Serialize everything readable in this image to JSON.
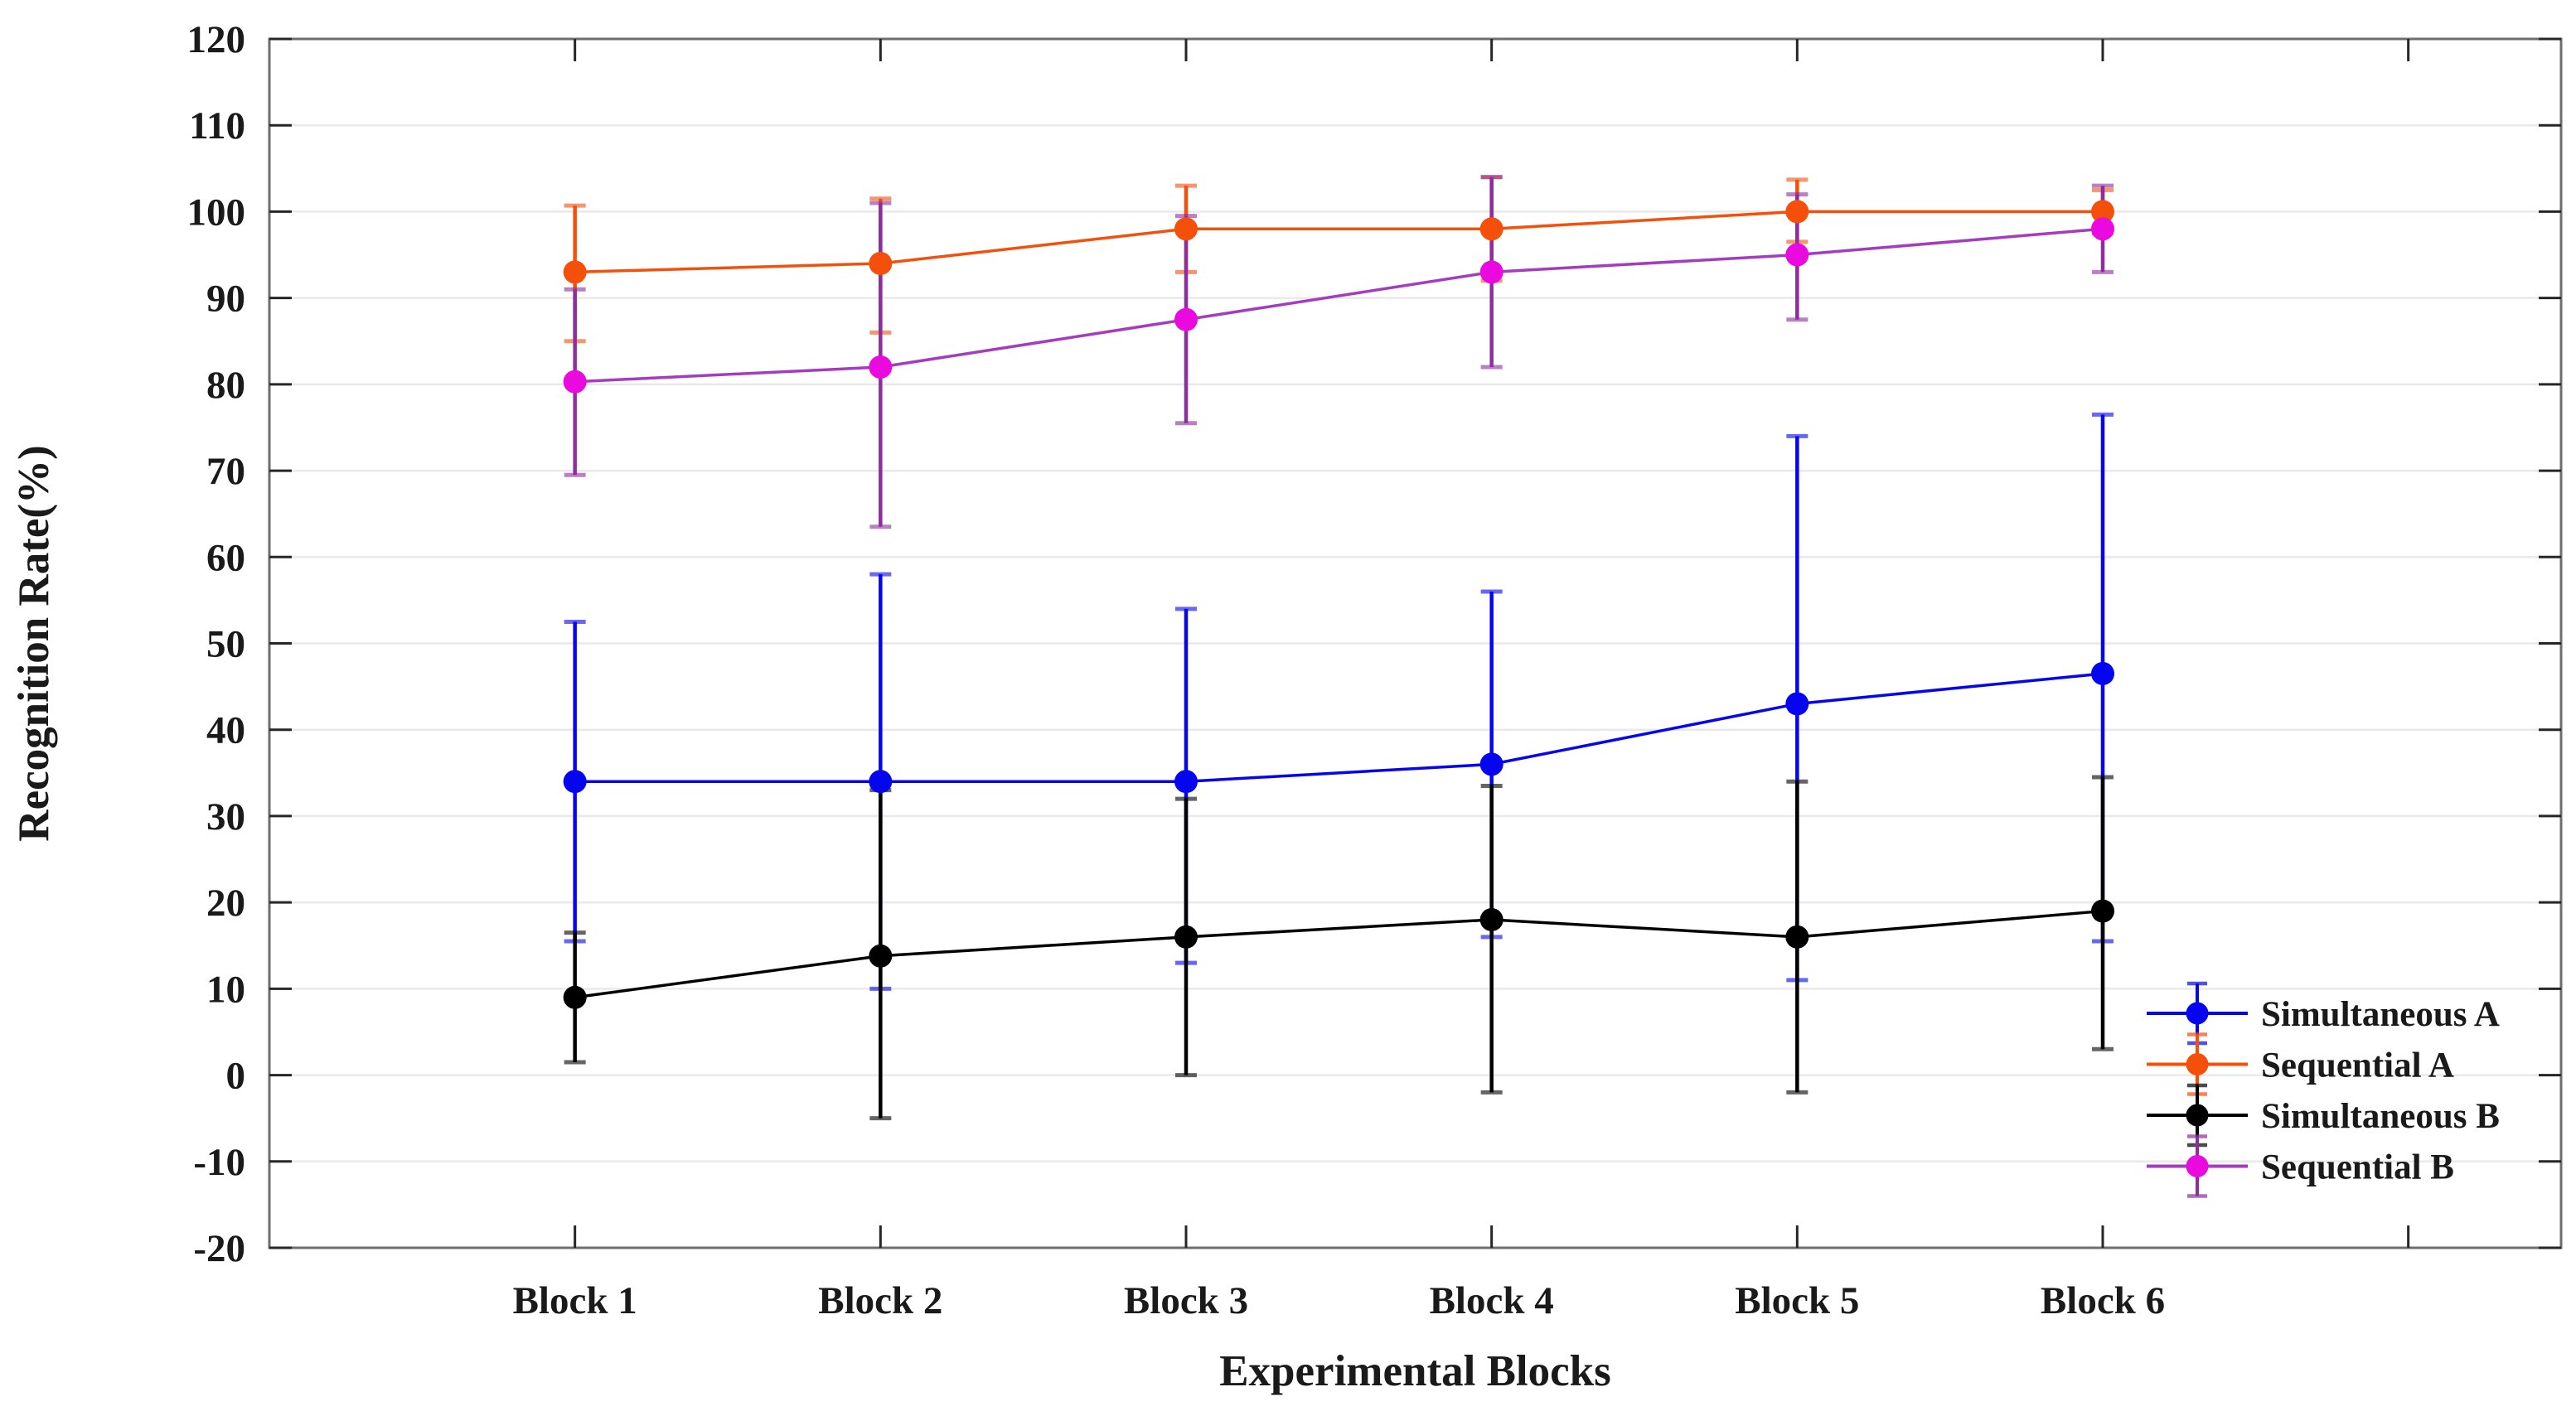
{
  "figure": {
    "kind": "errorbar-line-chart",
    "background": "#ffffff"
  },
  "chart_data": {
    "type": "line",
    "title": "",
    "xlabel": "Experimental Blocks",
    "ylabel": "Recognition Rate(%)",
    "categories": [
      "Block 1",
      "Block 2",
      "Block 3",
      "Block 4",
      "Block 5",
      "Block 6"
    ],
    "x_tick_positions": [
      1,
      2,
      3,
      4,
      5,
      6,
      7
    ],
    "x_tick_labels": [
      "Block 1",
      "Block 2",
      "Block 3",
      "Block 4",
      "Block 5",
      "Block 6",
      ""
    ],
    "xlim_category_units": [
      0,
      7.5
    ],
    "ylim": [
      -20,
      120
    ],
    "ytick_step": 10,
    "ytick_labels": [
      "120",
      "110",
      "100",
      "90",
      "80",
      "70",
      "60",
      "50",
      "40",
      "30",
      "20",
      "10",
      "0",
      "-10",
      "-20"
    ],
    "grid": true,
    "grid_color": "#e9e9e9",
    "axis_color": "#6e6e6e",
    "tick_color": "#262626",
    "legend_position": "inside-lower-right",
    "legend_has_border": false,
    "series": [
      {
        "name": "Simultaneous A",
        "marker": "circle",
        "marker_color": "#0505f0",
        "line_color": "#0505f0",
        "err_color": "#0505f0",
        "values": [
          34,
          34,
          34,
          36,
          43,
          46.5
        ],
        "ci_low": [
          15.5,
          10,
          13,
          16,
          11,
          15.5
        ],
        "ci_high": [
          52.5,
          58,
          54,
          56,
          74,
          76.5
        ]
      },
      {
        "name": "Sequential  A",
        "marker": "circle",
        "marker_color": "#f4500c",
        "line_color": "#f4500c",
        "err_color": "#f4500c",
        "values": [
          93,
          94,
          98,
          98,
          100,
          100
        ],
        "ci_low": [
          85,
          86,
          93,
          92,
          96.5,
          97.5
        ],
        "ci_high": [
          100.7,
          101.5,
          103,
          104,
          103.7,
          102.5
        ]
      },
      {
        "name": "Simultaneous B",
        "marker": "circle",
        "marker_color": "#000000",
        "line_color": "#000000",
        "err_color": "#000000",
        "values": [
          9,
          13.8,
          16,
          18,
          16,
          19
        ],
        "ci_low": [
          1.5,
          -5,
          0,
          -2,
          -2,
          3
        ],
        "ci_high": [
          16.5,
          33,
          32,
          33.5,
          34,
          34.5
        ]
      },
      {
        "name": "Sequential  B",
        "marker": "circle",
        "marker_color": "#ea0adf",
        "line_color": "#a43bc0",
        "err_color": "#8e2d9e",
        "values": [
          80.3,
          82,
          87.5,
          93,
          95,
          98
        ],
        "ci_low": [
          69.5,
          63.5,
          75.5,
          82,
          87.5,
          93
        ],
        "ci_high": [
          91,
          101,
          99.5,
          104,
          102,
          103
        ]
      }
    ],
    "legend_entries": [
      "Simultaneous A",
      "Sequential  A",
      "Simultaneous B",
      "Sequential  B"
    ]
  }
}
